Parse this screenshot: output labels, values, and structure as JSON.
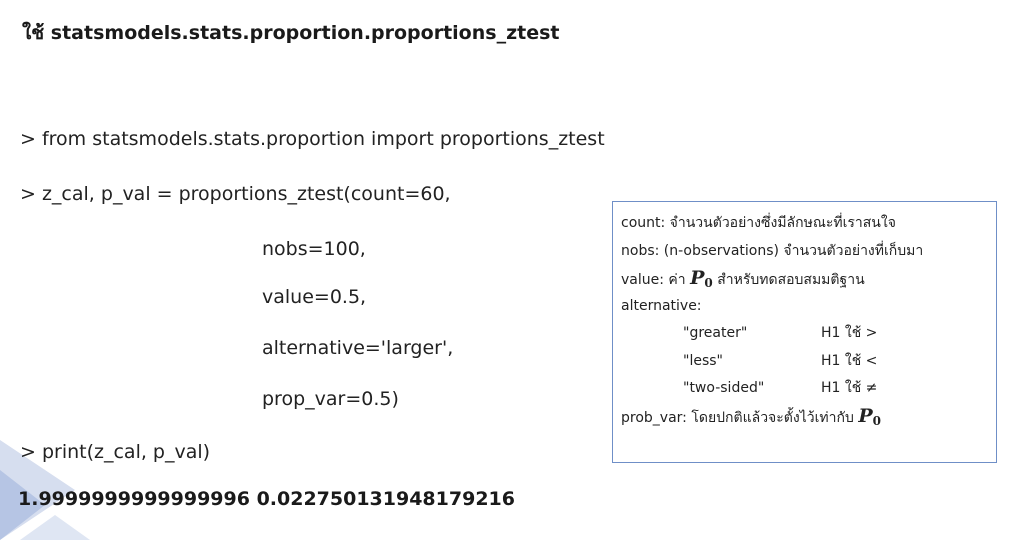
{
  "title": "ใช้ statsmodels.stats.proportion.proportions_ztest",
  "code": {
    "line1": "> from statsmodels.stats.proportion import proportions_ztest",
    "line2": "> z_cal, p_val = proportions_ztest(count=60,",
    "line3": "nobs=100,",
    "line4": "value=0.5,",
    "line5": "alternative='larger',",
    "line6": "prop_var=0.5)",
    "line7": "> print(z_cal, p_val)"
  },
  "result": "1.9999999999999996 0.022750131948179216",
  "infobox": {
    "count": "count: จำนวนตัวอย่างซึ่งมีลักษณะที่เราสนใจ",
    "nobs": "nobs: (n-observations) จำนวนตัวอย่างที่เก็บมา",
    "value_prefix": "value: ค่า",
    "value_suffix": "สำหรับทดสอบสมมติฐาน",
    "alternative": "alternative:",
    "alts": [
      {
        "name": "\"greater\"",
        "h1": "H1 ใช้ >"
      },
      {
        "name": "\"less\"",
        "h1": "H1 ใช้ <"
      },
      {
        "name": "\"two-sided\"",
        "h1": "H1 ใช้ ≠"
      }
    ],
    "prob_var_prefix": "prob_var: โดยปกติแล้วจะตั้งไว้เท่ากับ",
    "p_symbol": "P",
    "p_sub": "0"
  },
  "colors": {
    "accent_border": "#6f8fc7",
    "deco_light": "#d6deef",
    "deco_mid": "#b6c5e4"
  }
}
